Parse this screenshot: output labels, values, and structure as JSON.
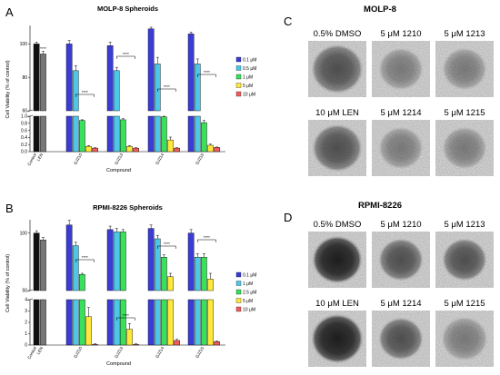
{
  "panel_letters": [
    "A",
    "B",
    "C",
    "D"
  ],
  "chart_data": [
    {
      "type": "bar",
      "title": "MOLP-8 Spheroids",
      "ylabel": "Cell Viability (% of control)",
      "xlabel": "Compound",
      "axis_break": true,
      "ylim_top": [
        60,
        110
      ],
      "ylim_bottom": [
        0,
        1.0
      ],
      "yticks_top": [
        60,
        80,
        100
      ],
      "yticks_bottom": [
        "0.0",
        "0.2",
        "0.4",
        "0.6",
        "0.8",
        "1.0"
      ],
      "groups": [
        "Control",
        "LEN",
        "GJ210",
        "GJ213",
        "GJ214",
        "GJ215"
      ],
      "legend": [
        "0.1 μM",
        "0.5 μM",
        "1 μM",
        "5 μM",
        "10 μM"
      ],
      "colors": [
        "#3b3bd6",
        "#4ec6e8",
        "#39e05a",
        "#ffe83b",
        "#f25c5c"
      ],
      "control": [
        {
          "value": 100,
          "err": 1,
          "color": "#111111"
        },
        {
          "value": 94,
          "err": 1.5,
          "color": "#777777",
          "sig": "****"
        }
      ],
      "series": [
        {
          "name": "0.1 μM",
          "values": [
            100,
            99,
            109,
            106
          ]
        },
        {
          "name": "0.5 μM",
          "values": [
            84,
            84,
            88,
            88
          ]
        },
        {
          "name": "1 μM",
          "values": [
            0.88,
            0.9,
            0.98,
            0.82
          ]
        },
        {
          "name": "5 μM",
          "values": [
            0.15,
            0.15,
            0.33,
            0.18
          ]
        },
        {
          "name": "10 μM",
          "values": [
            0.1,
            0.1,
            0.1,
            0.12
          ]
        }
      ],
      "errors": [
        [
          2,
          2,
          1,
          1
        ],
        [
          3,
          2,
          4,
          3
        ],
        [
          0.02,
          0.03,
          0.02,
          0.06
        ],
        [
          0.02,
          0.02,
          0.08,
          0.03
        ],
        [
          0.01,
          0.01,
          0.01,
          0.01
        ]
      ],
      "sig": [
        "****",
        "****",
        "****",
        "****"
      ]
    },
    {
      "type": "bar",
      "title": "RPMI-8226 Spheroids",
      "ylabel": "Cell Viability (% of control)",
      "xlabel": "Compound",
      "axis_break": true,
      "ylim_top": [
        50,
        110
      ],
      "ylim_bottom": [
        0,
        4
      ],
      "yticks_top": [
        50,
        100
      ],
      "yticks_bottom": [
        "0",
        "1",
        "2",
        "3",
        "4"
      ],
      "groups": [
        "Control",
        "LEN",
        "GJ210",
        "GJ213",
        "GJ214",
        "GJ215"
      ],
      "legend": [
        "0.1 μM",
        "1 μM",
        "2.5 μM",
        "5 μM",
        "10 μM"
      ],
      "colors": [
        "#3b3bd6",
        "#4ec6e8",
        "#39e05a",
        "#ffe83b",
        "#f25c5c"
      ],
      "control": [
        {
          "value": 100,
          "err": 2,
          "color": "#111111"
        },
        {
          "value": 94,
          "err": 2,
          "color": "#777777"
        }
      ],
      "series": [
        {
          "name": "0.1 μM",
          "values": [
            107,
            103,
            104,
            100
          ]
        },
        {
          "name": "1 μM",
          "values": [
            89,
            101,
            95,
            79
          ]
        },
        {
          "name": "2.5 μM",
          "values": [
            64,
            101,
            79,
            79
          ]
        },
        {
          "name": "5 μM",
          "values": [
            2.5,
            1.4,
            62,
            60
          ]
        },
        {
          "name": "10 μM",
          "values": [
            0.05,
            0.05,
            0.4,
            0.3
          ]
        }
      ],
      "errors": [
        [
          4,
          3,
          3,
          3
        ],
        [
          3,
          3,
          3,
          3
        ],
        [
          1,
          2,
          2,
          3
        ],
        [
          0.8,
          0.5,
          3,
          5
        ],
        [
          0.05,
          0.05,
          0.1,
          0.05
        ]
      ],
      "sig": [
        "****",
        "****",
        "****",
        "****"
      ]
    }
  ],
  "photo_panels": [
    {
      "title": "MOLP-8",
      "labels": [
        "0.5% DMSO",
        "5 μM 1210",
        "5 μM 1213",
        "10 μM LEN",
        "5 μM 1214",
        "5 μM 1215"
      ]
    },
    {
      "title": "RPMI-8226",
      "labels": [
        "0.5% DMSO",
        "5 μM 1210",
        "5 μM 1213",
        "10 μM LEN",
        "5 μM 1214",
        "5 μM 1215"
      ]
    }
  ]
}
